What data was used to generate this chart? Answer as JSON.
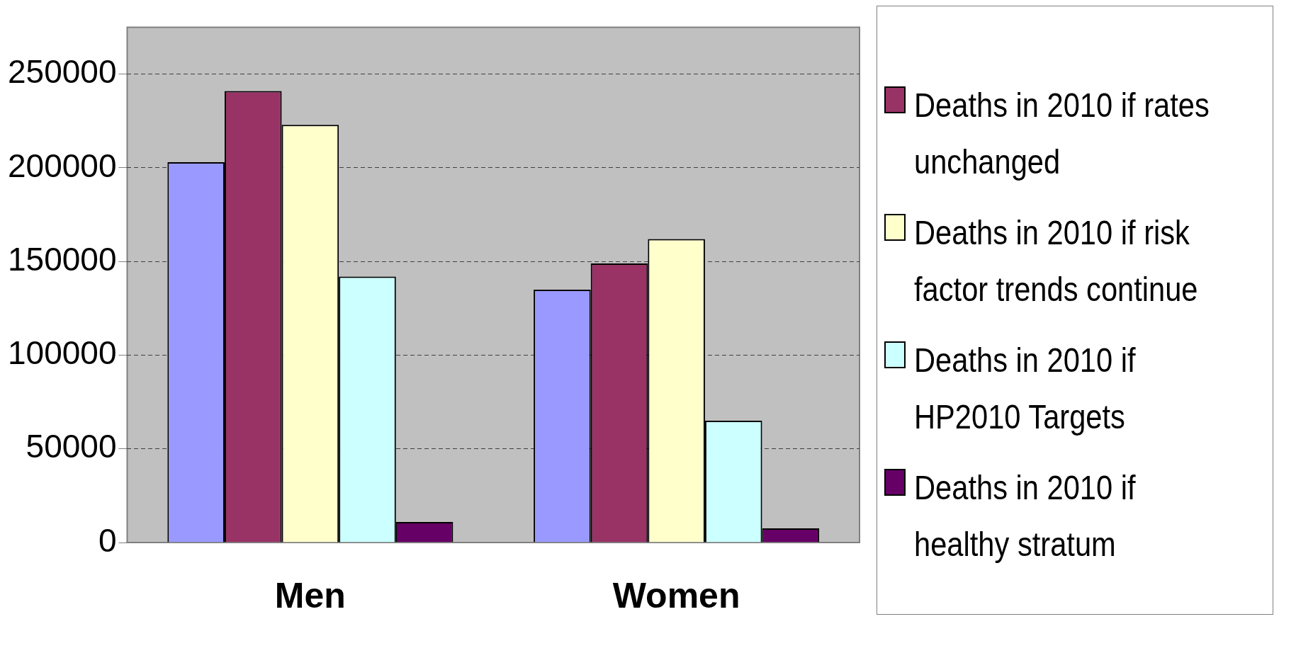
{
  "chart_data": {
    "type": "bar",
    "categories": [
      "Men",
      "Women"
    ],
    "series": [
      {
        "color": "#9999ff",
        "values": [
          203000,
          135000
        ]
      },
      {
        "name": "Deaths in 2010 if rates unchanged",
        "color": "#993366",
        "values": [
          241000,
          149000
        ]
      },
      {
        "name": "Deaths in 2010 if risk factor trends continue",
        "color": "#ffffcc",
        "values": [
          223000,
          162000
        ]
      },
      {
        "name": "Deaths in 2010 if HP2010 Targets",
        "color": "#ccffff",
        "values": [
          142000,
          65000
        ]
      },
      {
        "name": "Deaths in 2010 if healthy stratum",
        "color": "#660066",
        "values": [
          11000,
          7600
        ]
      }
    ],
    "ylim": [
      0,
      275000
    ],
    "yticks": [
      0,
      50000,
      100000,
      150000,
      200000,
      250000
    ],
    "grid": "y",
    "legend": "right"
  }
}
